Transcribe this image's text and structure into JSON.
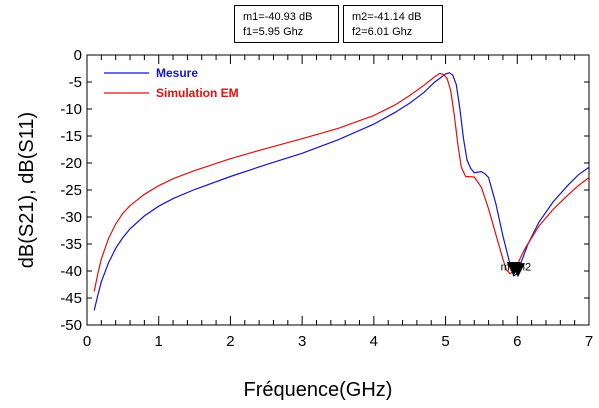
{
  "markers": [
    {
      "name": "m1",
      "line1": "m1=-40.93 dB",
      "line2": "f1=5.95 Ghz"
    },
    {
      "name": "m2",
      "line1": "m2=-41.14 dB",
      "line2": "f2=6.01 Ghz"
    }
  ],
  "marker_overlay_label": "m1m2",
  "chart_data": {
    "type": "line",
    "xlabel": "Fréquence(GHz)",
    "ylabel": "dB(S21), dB(S11)",
    "xlim": [
      0,
      7
    ],
    "ylim": [
      -50,
      0
    ],
    "xticks": [
      "0",
      "1",
      "2",
      "3",
      "4",
      "5",
      "6",
      "7"
    ],
    "yticks": [
      "0",
      "-5",
      "-10",
      "-15",
      "-20",
      "-25",
      "-30",
      "-35",
      "-40",
      "-45",
      "-50"
    ],
    "grid": true,
    "legend_position": "top-left",
    "series": [
      {
        "name": "Mesure",
        "color": "#1515d0",
        "points": [
          [
            0.1,
            -47.3
          ],
          [
            0.15,
            -44.5
          ],
          [
            0.2,
            -42.0
          ],
          [
            0.3,
            -38.5
          ],
          [
            0.4,
            -35.8
          ],
          [
            0.5,
            -33.8
          ],
          [
            0.6,
            -32.2
          ],
          [
            0.8,
            -29.8
          ],
          [
            1.0,
            -28.0
          ],
          [
            1.2,
            -26.6
          ],
          [
            1.5,
            -24.9
          ],
          [
            2.0,
            -22.5
          ],
          [
            2.5,
            -20.3
          ],
          [
            3.0,
            -18.2
          ],
          [
            3.5,
            -15.7
          ],
          [
            4.0,
            -12.8
          ],
          [
            4.3,
            -10.6
          ],
          [
            4.5,
            -8.9
          ],
          [
            4.7,
            -6.9
          ],
          [
            4.85,
            -5.0
          ],
          [
            4.95,
            -4.0
          ],
          [
            5.0,
            -3.5
          ],
          [
            5.05,
            -3.3
          ],
          [
            5.1,
            -3.7
          ],
          [
            5.15,
            -5.5
          ],
          [
            5.2,
            -10.0
          ],
          [
            5.25,
            -15.5
          ],
          [
            5.3,
            -19.5
          ],
          [
            5.35,
            -21.0
          ],
          [
            5.4,
            -21.8
          ],
          [
            5.5,
            -21.6
          ],
          [
            5.55,
            -22.0
          ],
          [
            5.6,
            -22.7
          ],
          [
            5.7,
            -27.5
          ],
          [
            5.8,
            -33.5
          ],
          [
            5.9,
            -38.8
          ],
          [
            5.95,
            -40.9
          ],
          [
            6.0,
            -40.5
          ],
          [
            6.05,
            -38.5
          ],
          [
            6.15,
            -35.0
          ],
          [
            6.3,
            -31.0
          ],
          [
            6.5,
            -27.2
          ],
          [
            6.7,
            -24.2
          ],
          [
            6.85,
            -22.2
          ],
          [
            7.0,
            -20.8
          ]
        ]
      },
      {
        "name": "Simulation EM",
        "color": "#e01010",
        "points": [
          [
            0.1,
            -43.8
          ],
          [
            0.15,
            -40.5
          ],
          [
            0.2,
            -37.8
          ],
          [
            0.3,
            -34.0
          ],
          [
            0.4,
            -31.3
          ],
          [
            0.5,
            -29.3
          ],
          [
            0.6,
            -27.9
          ],
          [
            0.8,
            -25.8
          ],
          [
            1.0,
            -24.2
          ],
          [
            1.2,
            -22.9
          ],
          [
            1.5,
            -21.4
          ],
          [
            2.0,
            -19.2
          ],
          [
            2.5,
            -17.3
          ],
          [
            3.0,
            -15.5
          ],
          [
            3.5,
            -13.6
          ],
          [
            4.0,
            -11.2
          ],
          [
            4.3,
            -9.2
          ],
          [
            4.5,
            -7.5
          ],
          [
            4.7,
            -5.6
          ],
          [
            4.85,
            -4.0
          ],
          [
            4.92,
            -3.4
          ],
          [
            4.97,
            -3.6
          ],
          [
            5.02,
            -4.3
          ],
          [
            5.07,
            -6.5
          ],
          [
            5.12,
            -11.0
          ],
          [
            5.17,
            -16.5
          ],
          [
            5.22,
            -20.8
          ],
          [
            5.28,
            -22.5
          ],
          [
            5.4,
            -22.6
          ],
          [
            5.5,
            -24.5
          ],
          [
            5.6,
            -28.5
          ],
          [
            5.7,
            -33.2
          ],
          [
            5.8,
            -37.8
          ],
          [
            5.85,
            -39.8
          ],
          [
            5.9,
            -40.5
          ],
          [
            5.95,
            -40.0
          ],
          [
            6.0,
            -38.8
          ],
          [
            6.1,
            -36.0
          ],
          [
            6.3,
            -31.7
          ],
          [
            6.5,
            -28.6
          ],
          [
            6.7,
            -26.0
          ],
          [
            6.85,
            -24.2
          ],
          [
            7.0,
            -22.7
          ]
        ]
      }
    ],
    "markers": [
      {
        "name": "m1",
        "x": 5.95,
        "y": -40.93
      },
      {
        "name": "m2",
        "x": 6.01,
        "y": -41.14
      }
    ]
  }
}
